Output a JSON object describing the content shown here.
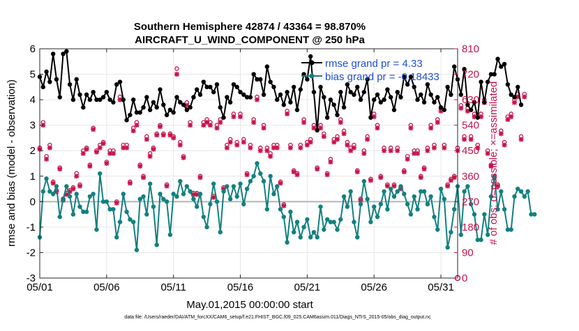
{
  "chart_data": {
    "type": "line",
    "title_line1": "Southern Hemisphere 42874 / 43364 = 98.870%",
    "title_line2": "AIRCRAFT_U_WIND_COMPONENT @ 250 hPa",
    "xlabel": "May.01,2015 00:00:00 start",
    "ylabel_left": "rmse and bias (model - observation)",
    "ylabel_right": "# of obs: o=possible; ×=assimilated",
    "footnote": "data file: /Users/raeder/DAI/ATM_forcXX/CAM6_setup/f.e21.FHIST_BGC.f09_025.CAM6assim.011/Diags_NTrS_2015-05/obs_diag_output.nc",
    "x_ticks": [
      "05/01",
      "05/06",
      "05/11",
      "05/16",
      "05/21",
      "05/26",
      "05/31"
    ],
    "x_tick_days": [
      0,
      5,
      10,
      15,
      20,
      25,
      30
    ],
    "xlim": [
      0,
      31.25
    ],
    "ylim_left": [
      -3,
      6
    ],
    "yticks_left": [
      "-3",
      "-2",
      "-1",
      "0",
      "1",
      "2",
      "3",
      "4",
      "5",
      "6"
    ],
    "ylim_right": [
      0,
      810
    ],
    "yticks_right": [
      "0",
      "90",
      "180",
      "270",
      "360",
      "450",
      "540",
      "630",
      "720",
      "810"
    ],
    "legend": {
      "rmse_label": "rmse grand pr = 4.33",
      "bias_label": "bias grand pr = -0.18433",
      "position": "top-right"
    },
    "colors": {
      "rmse": "#000000",
      "bias": "#128080",
      "obs": "#c8124a",
      "zero_line": "#b4b4b4",
      "legend_text": "#1f4fd6"
    },
    "step_days": 0.25,
    "series": [
      {
        "name": "rmse",
        "values": [
          4.9,
          4.5,
          5.1,
          4.7,
          5.8,
          4.8,
          4.1,
          5.8,
          5.9,
          4.6,
          4.0,
          4.8,
          4.2,
          3.7,
          4.2,
          4.0,
          4.3,
          4.0,
          4.0,
          4.1,
          4.3,
          4.0,
          3.9,
          4.6,
          4.7,
          4.0,
          3.2,
          3.4,
          4.0,
          3.5,
          3.5,
          3.7,
          4.1,
          3.6,
          3.9,
          3.7,
          4.4,
          3.8,
          3.4,
          3.6,
          3.5,
          4.1,
          3.9,
          3.8,
          3.6,
          3.7,
          4.1,
          4.4,
          4.2,
          4.7,
          4.5,
          4.5,
          4.3,
          4.6,
          3.7,
          3.3,
          4.1,
          3.9,
          4.6,
          4.5,
          4.3,
          4.2,
          4.1,
          4.1,
          5.0,
          4.8,
          4.8,
          4.2,
          5.3,
          4.7,
          4.5,
          4.0,
          4.2,
          3.8,
          4.3,
          3.9,
          4.5,
          3.6,
          4.4,
          5.0,
          4.8,
          5.7,
          4.3,
          2.8,
          4.5,
          4.1,
          3.3,
          4.0,
          3.8,
          3.4,
          4.3,
          3.7,
          4.6,
          4.3,
          4.2,
          4.5,
          4.0,
          4.3,
          4.8,
          3.3,
          4.0,
          4.2,
          3.9,
          4.0,
          4.4,
          4.1,
          3.6,
          4.3,
          4.1,
          4.9,
          4.6,
          4.9,
          4.5,
          4.0,
          4.2,
          3.9,
          4.6,
          4.2,
          3.9,
          4.1,
          3.7,
          3.6,
          4.5,
          4.2,
          5.3,
          4.8,
          4.2,
          5.2,
          3.8,
          3.6,
          3.9,
          3.3,
          4.7,
          3.9,
          4.7,
          5.0,
          5.0,
          5.6,
          5.3,
          5.4,
          4.6,
          4.2,
          4.1,
          4.5,
          3.8
        ]
      },
      {
        "name": "bias",
        "values": [
          -1.4,
          0.4,
          0.9,
          0.4,
          0.3,
          0.6,
          -0.6,
          0.1,
          0.6,
          0.2,
          -0.5,
          0.3,
          -0.2,
          -0.4,
          -0.4,
          0.2,
          0.3,
          -1.1,
          1.1,
          0.0,
          0.0,
          -0.3,
          -0.3,
          -1.4,
          -0.8,
          0.3,
          -0.4,
          -0.7,
          -0.8,
          -1.9,
          0.1,
          0.2,
          -0.5,
          0.7,
          -0.2,
          -1.7,
          0.3,
          0.1,
          0.0,
          -1.3,
          0.3,
          0.2,
          0.8,
          0.3,
          0.6,
          0.4,
          0.1,
          -0.2,
          0.3,
          -0.6,
          -1.0,
          -0.1,
          0.7,
          0.0,
          -1.2,
          0.4,
          0.6,
          0.1,
          0.6,
          0.2,
          0.7,
          -0.1,
          0.5,
          0.8,
          1.0,
          1.5,
          1.1,
          0.8,
          -0.3,
          1.0,
          0.3,
          0.6,
          -0.3,
          -0.6,
          -1.6,
          -0.4,
          -1.2,
          -0.8,
          -1.4,
          -1.0,
          -0.7,
          -1.4,
          -1.2,
          -1.4,
          -0.2,
          -1.1,
          -0.7,
          -0.8,
          -0.8,
          -1.1,
          -0.7,
          0.2,
          -0.2,
          0.4,
          -0.8,
          -1.4,
          -0.1,
          0.8,
          0.1,
          -0.8,
          -0.2,
          -0.6,
          -0.1,
          0.4,
          -0.3,
          0.5,
          0.2,
          0.4,
          0.6,
          0.3,
          -0.1,
          -0.5,
          0.2,
          -0.3,
          0.4,
          0.4,
          -0.1,
          0.2,
          -0.6,
          -1.1,
          0.5,
          0.1,
          -1.8,
          -1.2,
          -0.3,
          0.6,
          -1.3,
          0.4,
          0.6,
          -0.1,
          -0.5,
          -1.5,
          -1.5,
          -0.5,
          -1.3,
          0.2,
          1.0,
          -0.3,
          0.4,
          -0.3,
          -1.1,
          -1.1,
          0.2,
          0.5,
          0.4,
          0.2,
          0.4,
          -0.5,
          -0.5
        ]
      },
      {
        "name": "obs_possible",
        "values": [
          460,
          550,
          430,
          470,
          340,
          310,
          390,
          280,
          300,
          310,
          320,
          370,
          330,
          450,
          460,
          400,
          530,
          450,
          470,
          480,
          410,
          450,
          450,
          270,
          640,
          470,
          470,
          340,
          530,
          550,
          400,
          360,
          500,
          440,
          460,
          510,
          540,
          510,
          330,
          510,
          500,
          740,
          480,
          430,
          620,
          550,
          300,
          300,
          360,
          550,
          560,
          550,
          290,
          540,
          560,
          320,
          470,
          490,
          580,
          480,
          580,
          490,
          370,
          470,
          560,
          640,
          460,
          540,
          460,
          440,
          470,
          470,
          340,
          260,
          590,
          470,
          380,
          370,
          470,
          560,
          480,
          490,
          540,
          390,
          540,
          510,
          370,
          420,
          490,
          500,
          560,
          520,
          480,
          460,
          470,
          380,
          280,
          450,
          500,
          350,
          580,
          540,
          360,
          460,
          330,
          460,
          330,
          460,
          320,
          380,
          430,
          540,
          450,
          450,
          360,
          390,
          460,
          540,
          470,
          560,
          600,
          470,
          330,
          350,
          360,
          460,
          610,
          500,
          600,
          500,
          580,
          470,
          580,
          630,
          450,
          400,
          360,
          330,
          520,
          480,
          570,
          580,
          630,
          650,
          500,
          650
        ]
      },
      {
        "name": "obs_assimilated",
        "values": [
          455,
          540,
          420,
          460,
          335,
          305,
          385,
          275,
          295,
          305,
          315,
          360,
          325,
          440,
          455,
          395,
          525,
          445,
          460,
          475,
          405,
          440,
          440,
          265,
          630,
          460,
          460,
          335,
          520,
          540,
          395,
          355,
          490,
          430,
          455,
          505,
          535,
          505,
          325,
          505,
          495,
          720,
          470,
          425,
          610,
          540,
          295,
          295,
          355,
          540,
          550,
          540,
          285,
          530,
          550,
          315,
          460,
          480,
          570,
          470,
          570,
          480,
          365,
          460,
          550,
          630,
          450,
          530,
          450,
          430,
          460,
          460,
          335,
          255,
          580,
          460,
          375,
          365,
          460,
          550,
          470,
          480,
          530,
          385,
          530,
          500,
          365,
          410,
          480,
          490,
          550,
          510,
          470,
          450,
          460,
          375,
          275,
          440,
          490,
          345,
          570,
          530,
          355,
          450,
          325,
          450,
          325,
          450,
          315,
          375,
          420,
          530,
          440,
          440,
          355,
          385,
          450,
          530,
          460,
          550,
          590,
          460,
          325,
          345,
          355,
          450,
          600,
          490,
          590,
          490,
          570,
          460,
          570,
          620,
          440,
          395,
          355,
          325,
          510,
          470,
          560,
          570,
          620,
          640,
          490,
          640
        ]
      }
    ]
  }
}
